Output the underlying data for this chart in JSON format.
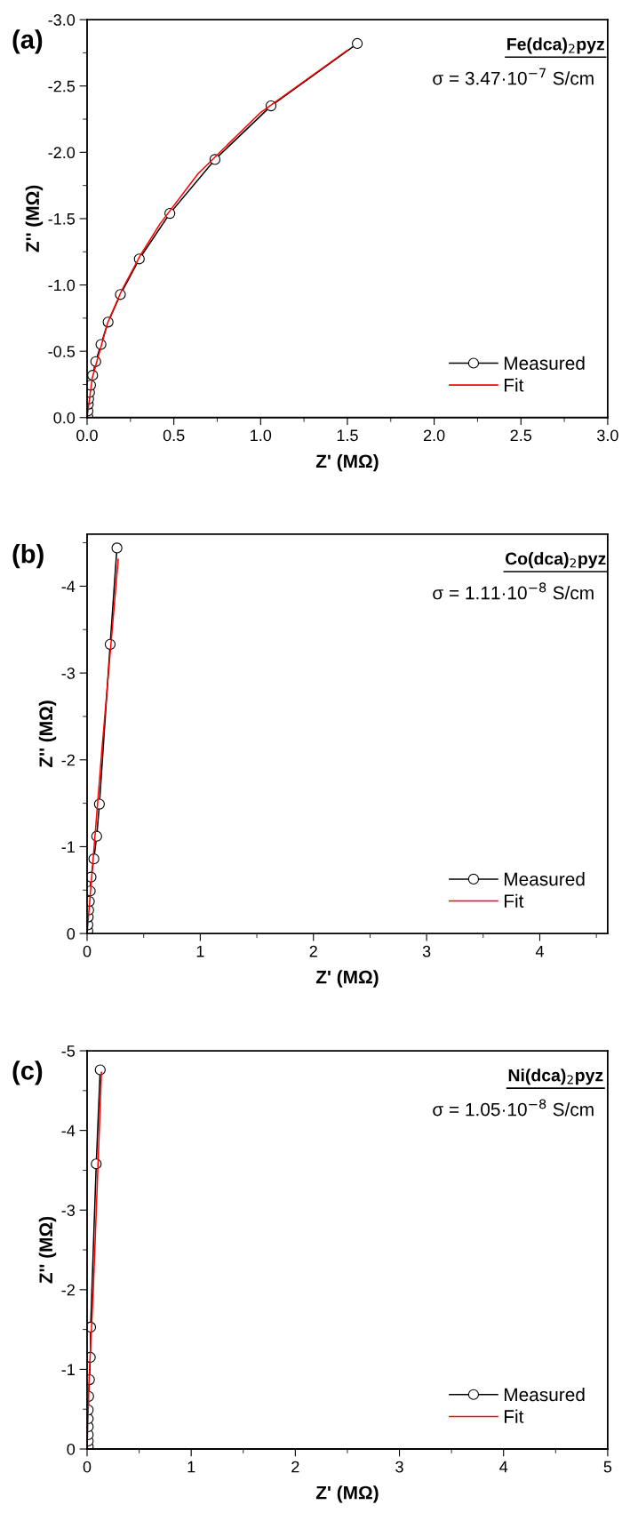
{
  "chart_data": [
    {
      "type": "line",
      "title": "Fe(dca)$_{2}$pyz",
      "annotations": [
        "(a)",
        "σ = 3.47·10$^{−7}$ S/cm"
      ],
      "xlabel": "Z' (MΩ)",
      "ylabel": "Z'' (MΩ)",
      "xlim": [
        0,
        3.0
      ],
      "ylim": [
        0,
        -3.0
      ],
      "xticks": [
        {
          "value": 0,
          "label": "0.0"
        },
        {
          "value": 0.25,
          "label": null
        },
        0.5,
        {
          "value": 0.75,
          "label": null
        },
        {
          "value": 1,
          "label": "1.0"
        },
        {
          "value": 1.25,
          "label": null
        },
        1.5,
        {
          "value": 1.75,
          "label": null
        },
        {
          "value": 2,
          "label": "2.0"
        },
        {
          "value": 2.25,
          "label": null
        },
        2.5,
        {
          "value": 2.75,
          "label": null
        },
        {
          "value": 3,
          "label": "3.0"
        }
      ],
      "yticks": [
        {
          "value": 0,
          "label": "0.0"
        },
        {
          "value": -0.25,
          "label": null
        },
        -0.5,
        {
          "value": -0.75,
          "label": null
        },
        {
          "value": -1,
          "label": "-1.0"
        },
        {
          "value": -1.25,
          "label": null
        },
        -1.5,
        {
          "value": -1.75,
          "label": null
        },
        {
          "value": -2,
          "label": "-2.0"
        },
        {
          "value": -2.25,
          "label": null
        },
        -2.5,
        {
          "value": -2.75,
          "label": null
        },
        {
          "value": -3,
          "label": "-3.0"
        }
      ],
      "grid": false,
      "legend": "bottom right",
      "series": [
        {
          "name": "Measured",
          "color": "#000000",
          "marker": "circle",
          "x": [
            0.004,
            0.005,
            0.007,
            0.009,
            0.014,
            0.02,
            0.032,
            0.05,
            0.08,
            0.121,
            0.192,
            0.301,
            0.477,
            0.737,
            1.06,
            1.557
          ],
          "values": [
            -0.01,
            -0.05,
            -0.1,
            -0.14,
            -0.19,
            -0.244,
            -0.319,
            -0.422,
            -0.551,
            -0.72,
            -0.928,
            -1.196,
            -1.539,
            -1.946,
            -2.35,
            -2.82
          ]
        },
        {
          "name": "Fit",
          "color": "#ff0000",
          "x": [
            0.0,
            0.005,
            0.03,
            0.12,
            0.2,
            0.31,
            0.42,
            0.64,
            1.0,
            1.5
          ],
          "values": [
            0.0,
            -0.05,
            -0.3,
            -0.72,
            -0.96,
            -1.23,
            -1.46,
            -1.84,
            -2.3,
            -2.77
          ]
        }
      ]
    },
    {
      "type": "line",
      "title": "Co(dca)$_{2}$pyz",
      "annotations": [
        "(b)",
        "σ = 1.11·10$^{−8}$ S/cm"
      ],
      "xlabel": "Z' (MΩ)",
      "ylabel": "Z'' (MΩ)",
      "xlim": [
        0,
        4.6
      ],
      "ylim": [
        0,
        -4.6
      ],
      "xticks": [
        0,
        {
          "value": 0.5,
          "label": null
        },
        1,
        {
          "value": 1.5,
          "label": null
        },
        2,
        {
          "value": 2.5,
          "label": null
        },
        3,
        {
          "value": 3.5,
          "label": null
        },
        4,
        {
          "value": 4.5,
          "label": null
        }
      ],
      "yticks": [
        0,
        {
          "value": -0.5,
          "label": null
        },
        -1,
        {
          "value": -1.5,
          "label": null
        },
        -2,
        {
          "value": -2.5,
          "label": null
        },
        -3,
        {
          "value": -3.5,
          "label": null
        },
        -4,
        {
          "value": -4.5,
          "label": null
        }
      ],
      "grid": false,
      "legend": "bottom right",
      "series": [
        {
          "name": "Measured",
          "color": "#000000",
          "marker": "circle",
          "x": [
            0.007,
            0.007,
            0.01,
            0.014,
            0.02,
            0.028,
            0.035,
            0.06,
            0.085,
            0.109,
            0.204,
            0.264
          ],
          "values": [
            -0.03,
            -0.1,
            -0.19,
            -0.27,
            -0.37,
            -0.49,
            -0.65,
            -0.86,
            -1.12,
            -1.49,
            -3.33,
            -4.44
          ]
        },
        {
          "name": "Fit",
          "color": "#ff0000",
          "x": [
            0.0,
            0.05,
            0.13,
            0.275
          ],
          "values": [
            0.0,
            -0.8,
            -2.1,
            -4.31
          ]
        }
      ]
    },
    {
      "type": "line",
      "title": "Ni(dca)$_{2}$pyz",
      "annotations": [
        "(c)",
        "σ = 1.05·10$^{−8}$ S/cm"
      ],
      "xlabel": "Z' (MΩ)",
      "ylabel": "Z'' (MΩ)",
      "xlim": [
        0,
        5
      ],
      "ylim": [
        0,
        -5
      ],
      "xticks": [
        0,
        {
          "value": 0.5,
          "label": null
        },
        1,
        {
          "value": 1.5,
          "label": null
        },
        2,
        {
          "value": 2.5,
          "label": null
        },
        3,
        {
          "value": 3.5,
          "label": null
        },
        4,
        {
          "value": 4.5,
          "label": null
        },
        5
      ],
      "yticks": [
        0,
        {
          "value": -0.5,
          "label": null
        },
        -1,
        {
          "value": -1.5,
          "label": null
        },
        -2,
        {
          "value": -2.5,
          "label": null
        },
        -3,
        {
          "value": -3.5,
          "label": null
        },
        -4,
        {
          "value": -4.5,
          "label": null
        },
        -5
      ],
      "grid": false,
      "legend": "bottom right",
      "series": [
        {
          "name": "Measured",
          "color": "#000000",
          "marker": "circle",
          "x": [
            0.011,
            0.011,
            0.011,
            0.011,
            0.011,
            0.011,
            0.015,
            0.023,
            0.031,
            0.034,
            0.088,
            0.126
          ],
          "values": [
            -0.03,
            -0.1,
            -0.18,
            -0.28,
            -0.38,
            -0.49,
            -0.66,
            -0.87,
            -1.15,
            -1.53,
            -3.58,
            -4.76
          ]
        },
        {
          "name": "Fit",
          "color": "#ff0000",
          "x": [
            0.0,
            0.02,
            0.06,
            0.138
          ],
          "values": [
            0.0,
            -0.9,
            -2.0,
            -4.73
          ]
        }
      ]
    }
  ]
}
